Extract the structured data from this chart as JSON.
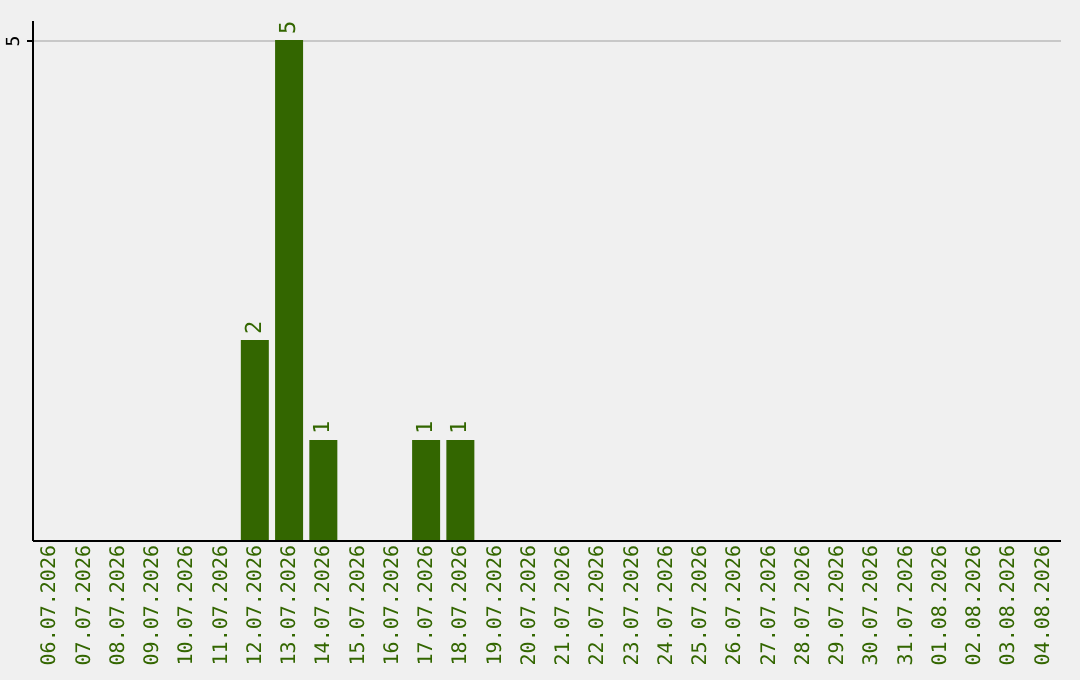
{
  "chart_data": {
    "type": "bar",
    "categories": [
      "06.07.2026",
      "07.07.2026",
      "08.07.2026",
      "09.07.2026",
      "10.07.2026",
      "11.07.2026",
      "12.07.2026",
      "13.07.2026",
      "14.07.2026",
      "15.07.2026",
      "16.07.2026",
      "17.07.2026",
      "18.07.2026",
      "19.07.2026",
      "20.07.2026",
      "21.07.2026",
      "22.07.2026",
      "23.07.2026",
      "24.07.2026",
      "25.07.2026",
      "26.07.2026",
      "27.07.2026",
      "28.07.2026",
      "29.07.2026",
      "30.07.2026",
      "31.07.2026",
      "01.08.2026",
      "02.08.2026",
      "03.08.2026",
      "04.08.2026"
    ],
    "values": [
      0,
      0,
      0,
      0,
      0,
      0,
      2,
      5,
      1,
      0,
      0,
      1,
      1,
      0,
      0,
      0,
      0,
      0,
      0,
      0,
      0,
      0,
      0,
      0,
      0,
      0,
      0,
      0,
      0,
      0
    ],
    "value_labels": [
      null,
      null,
      null,
      null,
      null,
      null,
      "2",
      "5",
      "1",
      null,
      null,
      "1",
      "1",
      null,
      null,
      null,
      null,
      null,
      null,
      null,
      null,
      null,
      null,
      null,
      null,
      null,
      null,
      null,
      null,
      null
    ],
    "color": "#336600",
    "ylim": [
      0,
      5.2
    ],
    "yticks": [
      5
    ],
    "grid": "y"
  }
}
